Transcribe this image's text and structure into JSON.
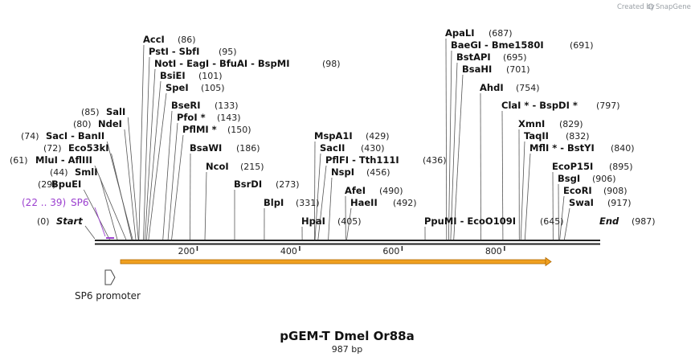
{
  "watermark": {
    "created_by": "Created by",
    "brand": "SnapGene"
  },
  "plasmid": {
    "name": "pGEM-T Dmel Or88a",
    "size": "987 bp"
  },
  "markers": {
    "start": {
      "label": "Start",
      "pos": "(0)"
    },
    "end": {
      "label": "End",
      "pos": "(987)"
    }
  },
  "primer": {
    "label": "SP6",
    "pos": "(22 .. 39)",
    "color": "#9b3fcf"
  },
  "feature": {
    "label": "SP6 promoter"
  },
  "orf_color": "#f0a020",
  "ruler": [
    "200",
    "400",
    "600",
    "800"
  ],
  "sites": [
    {
      "name": "BpuEI",
      "pos": "(29)"
    },
    {
      "name": "SmlI",
      "pos": "(44)"
    },
    {
      "name": "MluI - AflIII",
      "pos": "(61)"
    },
    {
      "name": "Eco53kI",
      "pos": "(72)"
    },
    {
      "name": "SacI - BanII",
      "pos": "(74)"
    },
    {
      "name": "NdeI",
      "pos": "(80)"
    },
    {
      "name": "SalI",
      "pos": "(85)"
    },
    {
      "name": "AccI",
      "pos": "(86)"
    },
    {
      "name": "PstI - SbfI",
      "pos": "(95)"
    },
    {
      "name": "NotI - EagI - BfuAI - BspMI",
      "pos": "(98)"
    },
    {
      "name": "BsiEI",
      "pos": "(101)"
    },
    {
      "name": "SpeI",
      "pos": "(105)"
    },
    {
      "name": "BseRI",
      "pos": "(133)"
    },
    {
      "name": "PfoI *",
      "pos": "(143)"
    },
    {
      "name": "PflMI *",
      "pos": "(150)"
    },
    {
      "name": "BsaWI",
      "pos": "(186)"
    },
    {
      "name": "NcoI",
      "pos": "(215)"
    },
    {
      "name": "BsrDI",
      "pos": "(273)"
    },
    {
      "name": "BlpI",
      "pos": "(331)"
    },
    {
      "name": "HpaI",
      "pos": "(405)"
    },
    {
      "name": "MspA1I",
      "pos": "(429)"
    },
    {
      "name": "SacII",
      "pos": "(430)"
    },
    {
      "name": "PflFI - Tth111I",
      "pos": "(436)"
    },
    {
      "name": "NspI",
      "pos": "(456)"
    },
    {
      "name": "AfeI",
      "pos": "(490)"
    },
    {
      "name": "HaeII",
      "pos": "(492)"
    },
    {
      "name": "PpuMI - EcoO109I",
      "pos": "(645)"
    },
    {
      "name": "ApaLI",
      "pos": "(687)"
    },
    {
      "name": "BaeGI - Bme1580I",
      "pos": "(691)"
    },
    {
      "name": "BstAPI",
      "pos": "(695)"
    },
    {
      "name": "BsaHI",
      "pos": "(701)"
    },
    {
      "name": "AhdI",
      "pos": "(754)"
    },
    {
      "name": "ClaI * - BspDI *",
      "pos": "(797)"
    },
    {
      "name": "XmnI",
      "pos": "(829)"
    },
    {
      "name": "TaqII",
      "pos": "(832)"
    },
    {
      "name": "MflI * - BstYI",
      "pos": "(840)"
    },
    {
      "name": "EcoP15I",
      "pos": "(895)"
    },
    {
      "name": "BsgI",
      "pos": "(906)"
    },
    {
      "name": "EcoRI",
      "pos": "(908)"
    },
    {
      "name": "SwaI",
      "pos": "(917)"
    }
  ]
}
